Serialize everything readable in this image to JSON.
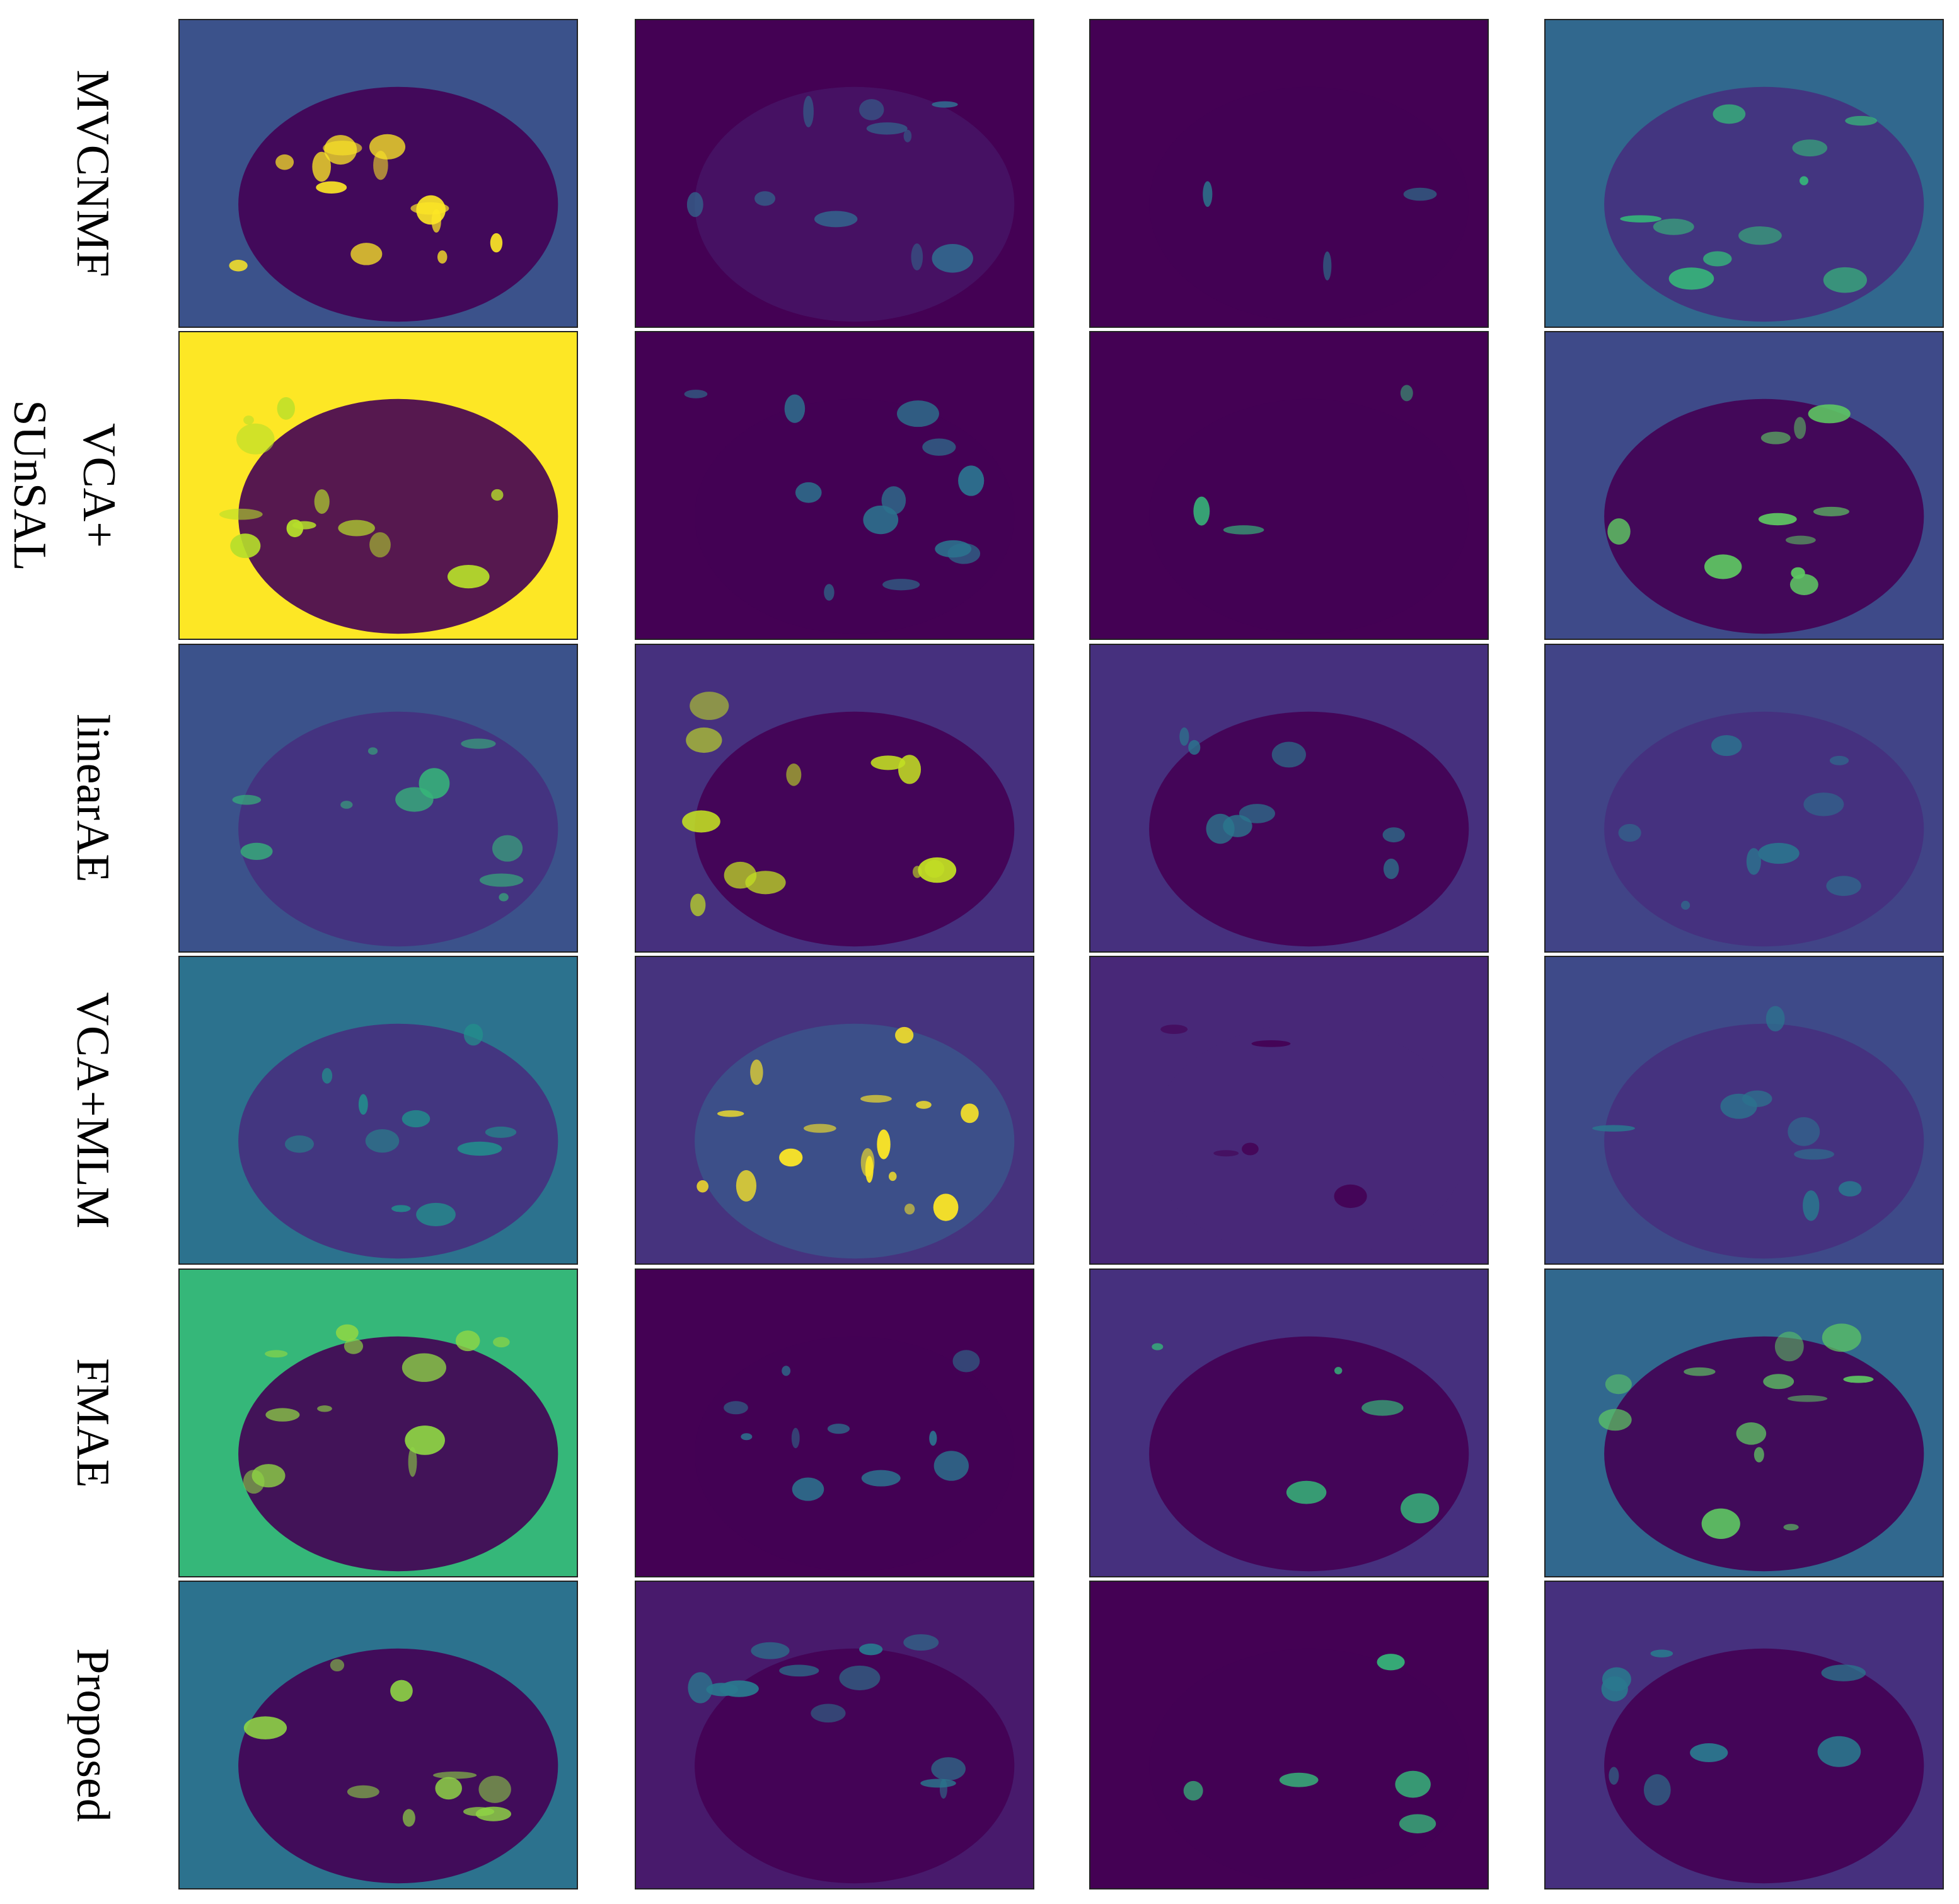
{
  "row_labels": [
    [
      "MVCNMF"
    ],
    [
      "VCA+",
      "SUnSAL"
    ],
    [
      "linearAE"
    ],
    [
      "VCA+MLM"
    ],
    [
      "FMAE"
    ],
    [
      "Proposed"
    ]
  ]
}
